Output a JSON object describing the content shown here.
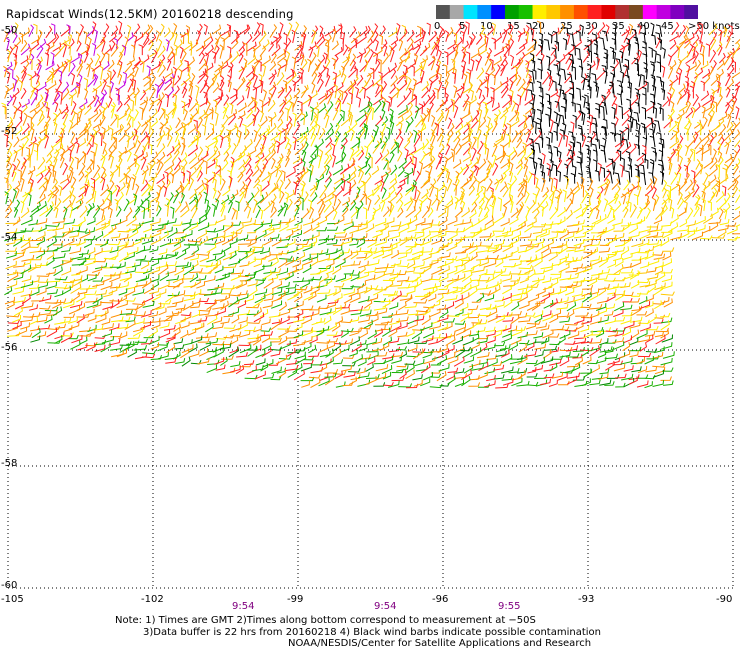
{
  "title": "Rapidscat Winds(12.5KM) 20160218 descending",
  "legend": {
    "labels": [
      "0",
      "5",
      "10",
      "15",
      "20",
      "25",
      "30",
      "35",
      "40",
      "45",
      ">50 knots"
    ],
    "colors": [
      "#555555",
      "#a8a8a8",
      "#00e4ff",
      "#0090ff",
      "#0000ff",
      "#00a000",
      "#18c000",
      "#ffee00",
      "#ffc800",
      "#ff9000",
      "#ff5000",
      "#ff2020",
      "#e00000",
      "#b03030",
      "#7a4a20",
      "#ff00ff",
      "#c000e0",
      "#8000c0",
      "#5010a0"
    ]
  },
  "axes": {
    "lat_labels": [
      "-50",
      "-52",
      "-54",
      "-56",
      "-58",
      "-60"
    ],
    "lon_labels": [
      "-105",
      "-102",
      "-99",
      "-96",
      "-93",
      "-90"
    ]
  },
  "times": [
    "9:54",
    "9:54",
    "9:55"
  ],
  "notes": {
    "line1": "Note: 1) Times are GMT 2)Times along bottom correspond to measurement at −50S",
    "line2": "3)Data buffer is 22 hrs from 20160218 4) Black wind barbs indicate possible contamination",
    "line3": "NOAA/NESDIS/Center for Satellite Applications and Research"
  }
}
